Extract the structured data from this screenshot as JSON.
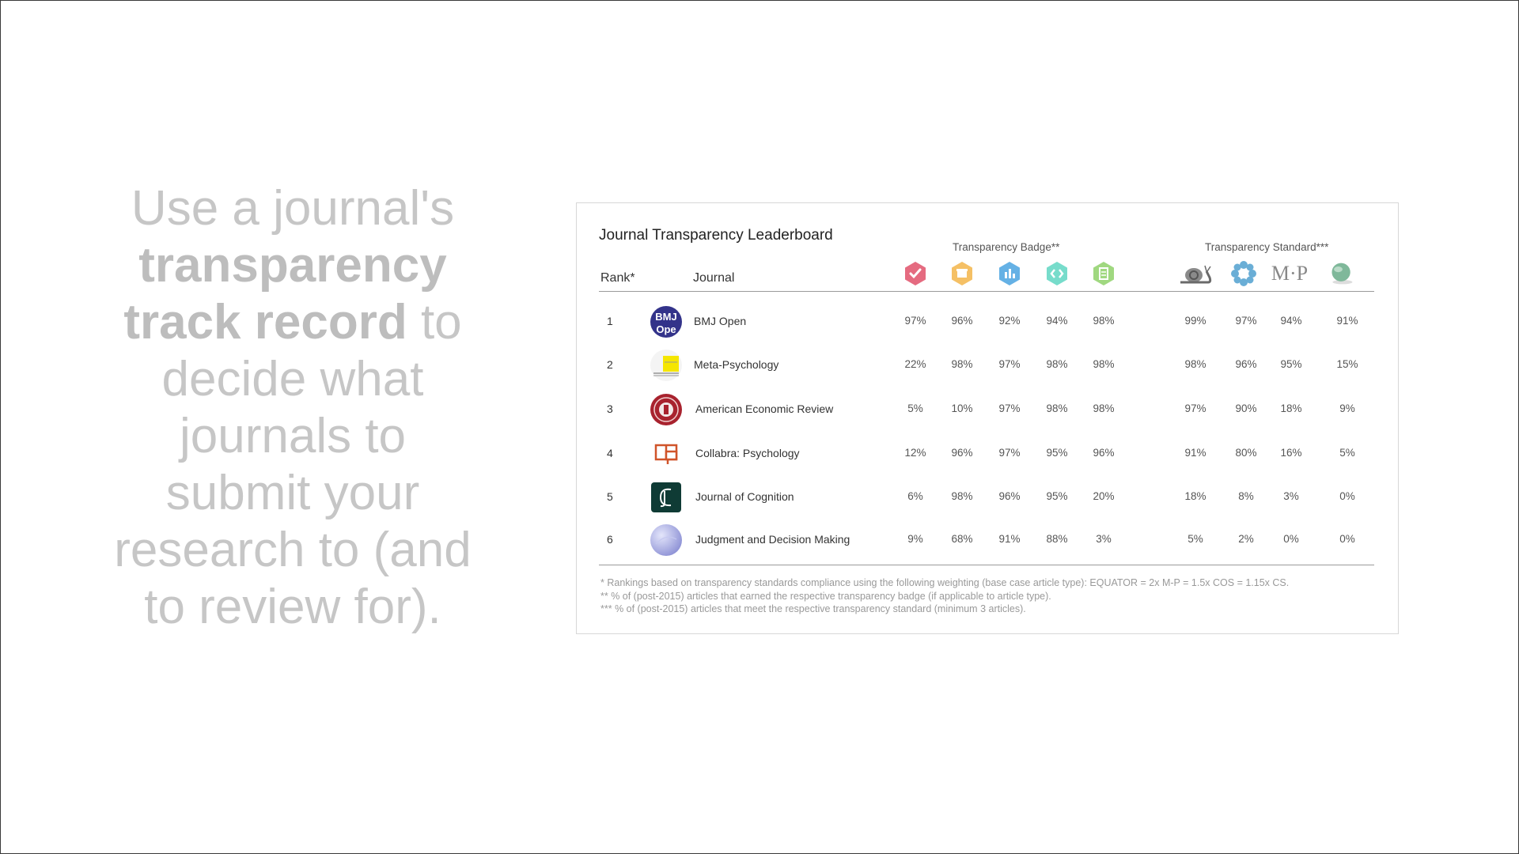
{
  "headline": {
    "pre": "Use a journal's ",
    "bold": "transparency track record",
    "post": " to decide what journals to submit your research to (and to review for)."
  },
  "leaderboard": {
    "title": "Journal Transparency Leaderboard",
    "badge_group": "Transparency Badge**",
    "standard_group": "Transparency Standard***",
    "rank_header": "Rank*",
    "journal_header": "Journal",
    "badge_icons": [
      {
        "name": "preregistered-badge-icon",
        "color": "#e0516a"
      },
      {
        "name": "open-materials-badge-icon",
        "color": "#f3b54a"
      },
      {
        "name": "open-data-badge-icon",
        "color": "#4aa3e0"
      },
      {
        "name": "open-code-badge-icon",
        "color": "#5fd6c2"
      },
      {
        "name": "open-preprint-badge-icon",
        "color": "#8fd16a"
      }
    ],
    "standard_icons": [
      {
        "name": "snail-standard-icon"
      },
      {
        "name": "flower-standard-icon"
      },
      {
        "name": "mp-standard-icon",
        "text": "M·P"
      },
      {
        "name": "globe-standard-icon"
      }
    ],
    "rows": [
      {
        "rank": "1",
        "journal": "BMJ Open",
        "logo": "bmj-open-logo",
        "badges": [
          "97%",
          "96%",
          "92%",
          "94%",
          "98%"
        ],
        "standards": [
          "99%",
          "97%",
          "94%",
          "91%"
        ]
      },
      {
        "rank": "2",
        "journal": "Meta-Psychology",
        "logo": "meta-psychology-logo",
        "badges": [
          "22%",
          "98%",
          "97%",
          "98%",
          "98%"
        ],
        "standards": [
          "98%",
          "96%",
          "95%",
          "15%"
        ]
      },
      {
        "rank": "3",
        "journal": "American Economic Review",
        "logo": "aer-logo",
        "badges": [
          "5%",
          "10%",
          "97%",
          "98%",
          "98%"
        ],
        "standards": [
          "97%",
          "90%",
          "18%",
          "9%"
        ]
      },
      {
        "rank": "4",
        "journal": "Collabra: Psychology",
        "logo": "collabra-logo",
        "badges": [
          "12%",
          "96%",
          "97%",
          "95%",
          "96%"
        ],
        "standards": [
          "91%",
          "80%",
          "16%",
          "5%"
        ]
      },
      {
        "rank": "5",
        "journal": "Journal of Cognition",
        "logo": "journal-of-cognition-logo",
        "badges": [
          "6%",
          "98%",
          "96%",
          "95%",
          "20%"
        ],
        "standards": [
          "18%",
          "8%",
          "3%",
          "0%"
        ]
      },
      {
        "rank": "6",
        "journal": "Judgment and Decision Making",
        "logo": "jdm-logo",
        "badges": [
          "9%",
          "68%",
          "91%",
          "88%",
          "3%"
        ],
        "standards": [
          "5%",
          "2%",
          "0%",
          "0%"
        ]
      }
    ],
    "footnotes": [
      "* Rankings based on transparency standards compliance using the following weighting (base case article type):  EQUATOR = 2x M-P = 1.5x COS = 1.15x CS.",
      "** % of (post-2015) articles that earned the respective transparency badge (if applicable to article type).",
      "*** % of (post-2015) articles that meet the respective transparency standard (minimum 3 articles)."
    ]
  }
}
